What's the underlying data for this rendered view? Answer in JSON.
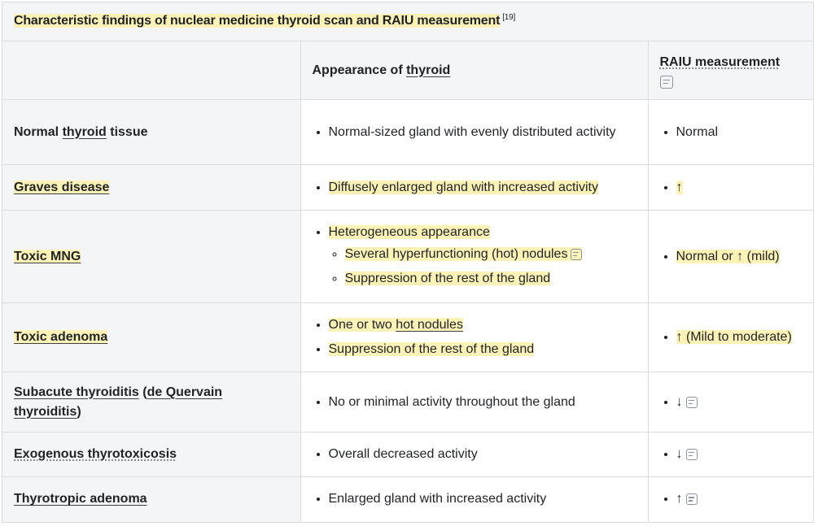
{
  "caption": {
    "title": "Characteristic findings of nuclear medicine thyroid scan and RAIU measurement",
    "reference": "[19]"
  },
  "headers": {
    "col1": "",
    "col2_prefix": "Appearance of ",
    "col2_link": "thyroid",
    "col3": "RAIU measurement"
  },
  "rows": [
    {
      "condition_prefix": "Normal ",
      "condition_link": "thyroid",
      "condition_suffix": " tissue",
      "appearance": [
        "Normal-sized gland with evenly distributed activity"
      ],
      "raiu": "Normal"
    },
    {
      "condition": "Graves disease",
      "appearance": [
        "Diffusely enlarged gland with increased activity"
      ],
      "raiu": "↑"
    },
    {
      "condition": "Toxic MNG",
      "appearance": [
        "Heterogeneous appearance"
      ],
      "appearance_sub": [
        "Several hyperfunctioning (hot) nodules",
        "Suppression of the rest of the gland"
      ],
      "raiu": "Normal or ↑ (mild)"
    },
    {
      "condition": "Toxic adenoma",
      "appearance_1_prefix": "One or two ",
      "appearance_1_link": "hot nodules",
      "appearance": [
        "Suppression of the rest of the gland"
      ],
      "raiu": "↑ (Mild to moderate)"
    },
    {
      "condition_link": "Subacute thyroiditis",
      "condition_mid": " (",
      "condition_link2": "de Quervain thyroiditis",
      "condition_suffix": ")",
      "appearance": [
        "No or minimal activity throughout the gland"
      ],
      "raiu": "↓"
    },
    {
      "condition": "Exogenous thyrotoxicosis",
      "appearance": [
        "Overall decreased activity"
      ],
      "raiu": "↓"
    },
    {
      "condition": "Thyrotropic adenoma",
      "appearance": [
        "Enlarged gland with increased activity"
      ],
      "raiu": "↑"
    }
  ],
  "icons": {
    "note": "note-icon"
  },
  "colors": {
    "highlight": "#fcf2b6",
    "header_bg": "#f3f5f7",
    "border": "#d9dde1"
  }
}
